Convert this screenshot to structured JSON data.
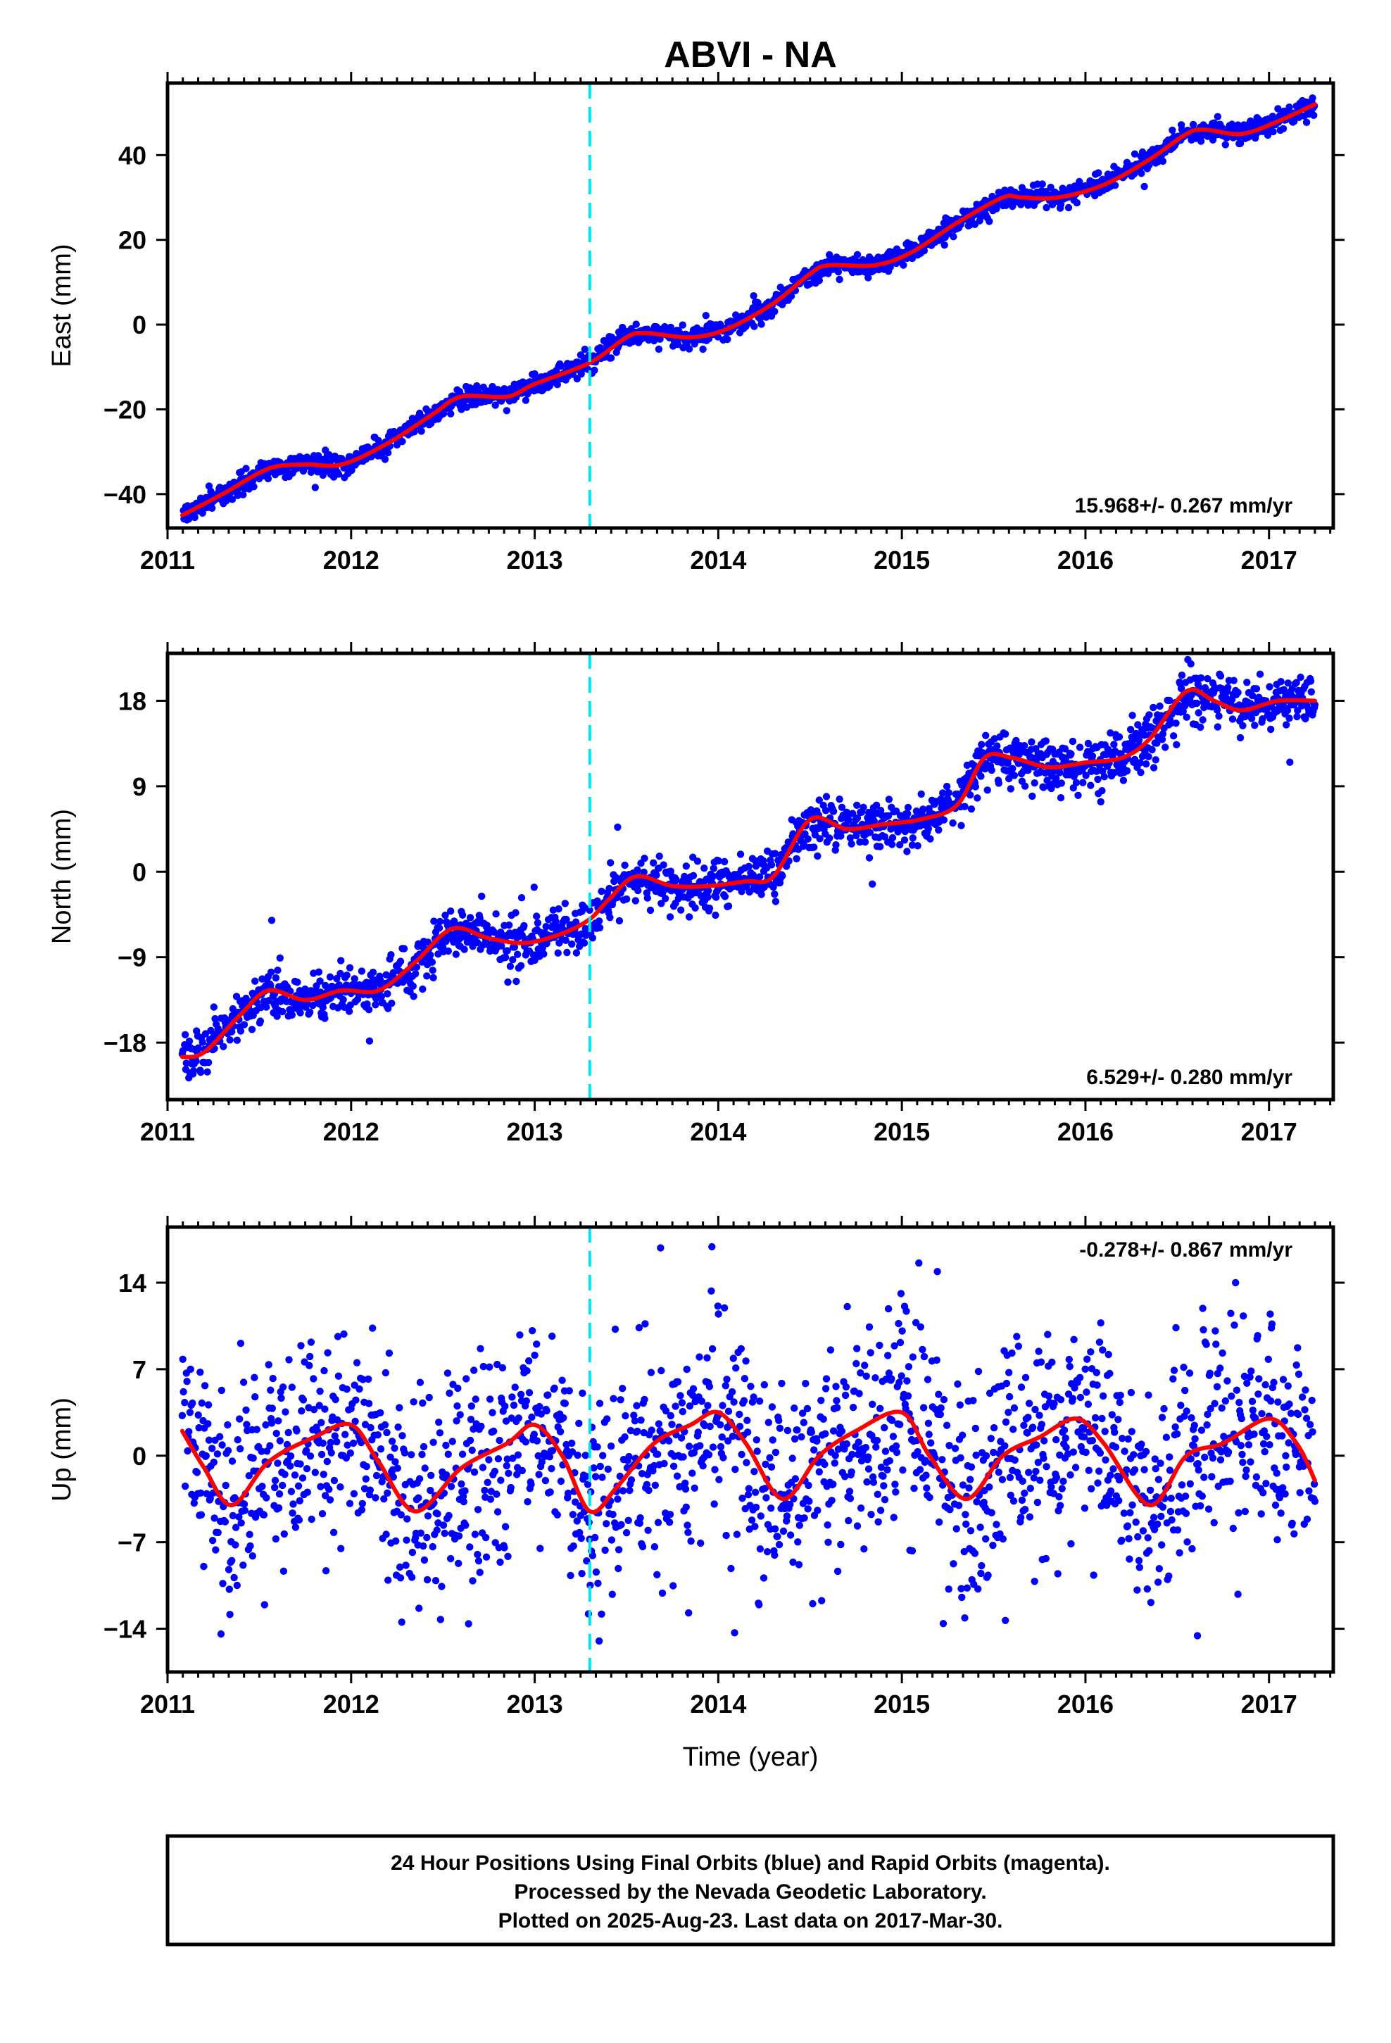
{
  "title": "ABVI - NA",
  "xlabel": "Time (year)",
  "footer": {
    "lines": [
      "24 Hour Positions Using Final Orbits (blue) and Rapid Orbits (magenta).",
      "Processed by the Nevada Geodetic Laboratory.",
      "Plotted on 2025-Aug-23. Last data on 2017-Mar-30."
    ]
  },
  "colors": {
    "points": "#0000ff",
    "model": "#ff0000",
    "event_line": "#00e5ee",
    "frame": "#000000"
  },
  "chart_data": [
    {
      "type": "scatter",
      "panel": "east",
      "ylabel": "East (mm)",
      "rate_text": "15.968+/- 0.267 mm/yr",
      "rate_position": "bottom-right",
      "xlim": [
        2011.0,
        2017.35
      ],
      "ylim": [
        -48,
        57
      ],
      "xticks": [
        2011,
        2012,
        2013,
        2014,
        2015,
        2016,
        2017
      ],
      "yticks": [
        -40,
        -20,
        0,
        20,
        40
      ],
      "ytick_labels": [
        "−40",
        "−20",
        "0",
        "20",
        "40"
      ],
      "event_line_x": 2013.3,
      "series": [
        {
          "name": "positions",
          "kind": "points",
          "scatter_sd": 1.2,
          "x": [
            2011.08,
            2011.3,
            2011.55,
            2011.75,
            2011.95,
            2012.2,
            2012.45,
            2012.6,
            2012.85,
            2013.0,
            2013.3,
            2013.5,
            2013.6,
            2013.85,
            2014.05,
            2014.3,
            2014.5,
            2014.6,
            2014.85,
            2015.05,
            2015.3,
            2015.55,
            2015.65,
            2015.85,
            2016.1,
            2016.35,
            2016.55,
            2016.65,
            2016.85,
            2017.05,
            2017.25
          ],
          "y": [
            -45,
            -40,
            -34,
            -33,
            -33,
            -28,
            -21,
            -17,
            -17,
            -14,
            -9,
            -3,
            -2,
            -3,
            -1,
            5,
            12,
            14,
            14,
            17,
            24,
            30,
            30,
            30,
            33,
            39,
            45,
            46,
            45,
            48,
            52
          ]
        },
        {
          "name": "model",
          "kind": "line",
          "x": [
            2011.08,
            2011.3,
            2011.55,
            2011.75,
            2011.95,
            2012.2,
            2012.45,
            2012.6,
            2012.85,
            2013.0,
            2013.3,
            2013.5,
            2013.6,
            2013.85,
            2014.05,
            2014.3,
            2014.5,
            2014.6,
            2014.85,
            2015.05,
            2015.3,
            2015.55,
            2015.65,
            2015.85,
            2016.1,
            2016.35,
            2016.55,
            2016.65,
            2016.85,
            2017.05,
            2017.25
          ],
          "y": [
            -45,
            -40,
            -34,
            -33,
            -33,
            -28,
            -21,
            -17,
            -17,
            -14,
            -9,
            -3,
            -2,
            -3,
            -1,
            5,
            12,
            14,
            14,
            17,
            24,
            30,
            30,
            30,
            33,
            39,
            45,
            46,
            45,
            48,
            52
          ]
        }
      ]
    },
    {
      "type": "scatter",
      "panel": "north",
      "ylabel": "North (mm)",
      "rate_text": "6.529+/- 0.280 mm/yr",
      "rate_position": "bottom-right",
      "xlim": [
        2011.0,
        2017.35
      ],
      "ylim": [
        -24,
        23
      ],
      "xticks": [
        2011,
        2012,
        2013,
        2014,
        2015,
        2016,
        2017
      ],
      "yticks": [
        -18,
        -9,
        0,
        9,
        18
      ],
      "ytick_labels": [
        "−18",
        "−9",
        "0",
        "9",
        "18"
      ],
      "event_line_x": 2013.3,
      "series": [
        {
          "name": "positions",
          "kind": "points",
          "scatter_sd": 1.3,
          "x": [
            2011.08,
            2011.2,
            2011.4,
            2011.55,
            2011.75,
            2011.95,
            2012.15,
            2012.35,
            2012.55,
            2012.75,
            2012.95,
            2013.15,
            2013.3,
            2013.4,
            2013.55,
            2013.75,
            2013.95,
            2014.15,
            2014.3,
            2014.5,
            2014.7,
            2014.9,
            2015.1,
            2015.3,
            2015.45,
            2015.6,
            2015.8,
            2016.0,
            2016.2,
            2016.35,
            2016.55,
            2016.7,
            2016.85,
            2017.05,
            2017.25
          ],
          "y": [
            -19.5,
            -19,
            -15,
            -12.5,
            -13.5,
            -12.5,
            -12.5,
            -9.5,
            -6,
            -7,
            -7.5,
            -6.5,
            -5,
            -3,
            -0.5,
            -1.5,
            -1.5,
            -1,
            -0.5,
            5.5,
            4.5,
            5,
            5.5,
            7,
            12,
            12,
            11,
            11.5,
            12,
            14,
            19,
            18,
            17,
            18,
            18
          ]
        },
        {
          "name": "model",
          "kind": "line",
          "x": [
            2011.08,
            2011.2,
            2011.4,
            2011.55,
            2011.75,
            2011.95,
            2012.15,
            2012.35,
            2012.55,
            2012.75,
            2012.95,
            2013.15,
            2013.3,
            2013.4,
            2013.55,
            2013.75,
            2013.95,
            2014.15,
            2014.3,
            2014.5,
            2014.7,
            2014.9,
            2015.1,
            2015.3,
            2015.45,
            2015.6,
            2015.8,
            2016.0,
            2016.2,
            2016.35,
            2016.55,
            2016.7,
            2016.85,
            2017.05,
            2017.25
          ],
          "y": [
            -19.5,
            -19,
            -15,
            -12.5,
            -13.5,
            -12.5,
            -12.5,
            -9.5,
            -6,
            -7,
            -7.5,
            -6.5,
            -5,
            -3,
            -0.5,
            -1.5,
            -1.5,
            -1,
            -0.5,
            5.5,
            4.5,
            5,
            5.5,
            7,
            12,
            12,
            11,
            11.5,
            12,
            14,
            19,
            18,
            17,
            18,
            18
          ]
        }
      ]
    },
    {
      "type": "scatter",
      "panel": "up",
      "ylabel": "Up (mm)",
      "rate_text": "-0.278+/- 0.867 mm/yr",
      "rate_position": "top-right",
      "xlim": [
        2011.0,
        2017.35
      ],
      "ylim": [
        -17.5,
        18.5
      ],
      "xticks": [
        2011,
        2012,
        2013,
        2014,
        2015,
        2016,
        2017
      ],
      "yticks": [
        -14,
        -7,
        0,
        7,
        14
      ],
      "ytick_labels": [
        "−14",
        "−7",
        "0",
        "7",
        "14"
      ],
      "event_line_x": 2013.3,
      "series": [
        {
          "name": "positions",
          "kind": "points",
          "scatter_sd": 4.2,
          "x": [
            2011.08,
            2011.2,
            2011.35,
            2011.55,
            2011.8,
            2012.0,
            2012.15,
            2012.35,
            2012.6,
            2012.85,
            2013.0,
            2013.15,
            2013.3,
            2013.45,
            2013.65,
            2013.85,
            2014.0,
            2014.15,
            2014.35,
            2014.55,
            2014.75,
            2015.0,
            2015.15,
            2015.35,
            2015.55,
            2015.75,
            2015.95,
            2016.1,
            2016.35,
            2016.55,
            2016.75,
            2017.0,
            2017.15,
            2017.25
          ],
          "y": [
            2,
            -1,
            -4,
            -0.5,
            1.5,
            2.5,
            -0.5,
            -4.5,
            -1,
            1,
            2.5,
            0,
            -4.5,
            -2.5,
            1,
            2.5,
            3.5,
            1,
            -3.5,
            0,
            2,
            3.5,
            0,
            -3.5,
            0,
            1.5,
            3,
            1,
            -4,
            0,
            1,
            3,
            1,
            -2
          ]
        },
        {
          "name": "model",
          "kind": "line",
          "x": [
            2011.08,
            2011.2,
            2011.35,
            2011.55,
            2011.8,
            2012.0,
            2012.15,
            2012.35,
            2012.6,
            2012.85,
            2013.0,
            2013.15,
            2013.3,
            2013.45,
            2013.65,
            2013.85,
            2014.0,
            2014.15,
            2014.35,
            2014.55,
            2014.75,
            2015.0,
            2015.15,
            2015.35,
            2015.55,
            2015.75,
            2015.95,
            2016.1,
            2016.35,
            2016.55,
            2016.75,
            2017.0,
            2017.15,
            2017.25
          ],
          "y": [
            2,
            -1,
            -4,
            -0.5,
            1.5,
            2.5,
            -0.5,
            -4.5,
            -1,
            1,
            2.5,
            0,
            -4.5,
            -2.5,
            1,
            2.5,
            3.5,
            1,
            -3.5,
            0,
            2,
            3.5,
            0,
            -3.5,
            0,
            1.5,
            3,
            1,
            -4,
            0,
            1,
            3,
            1,
            -2
          ]
        }
      ]
    }
  ]
}
